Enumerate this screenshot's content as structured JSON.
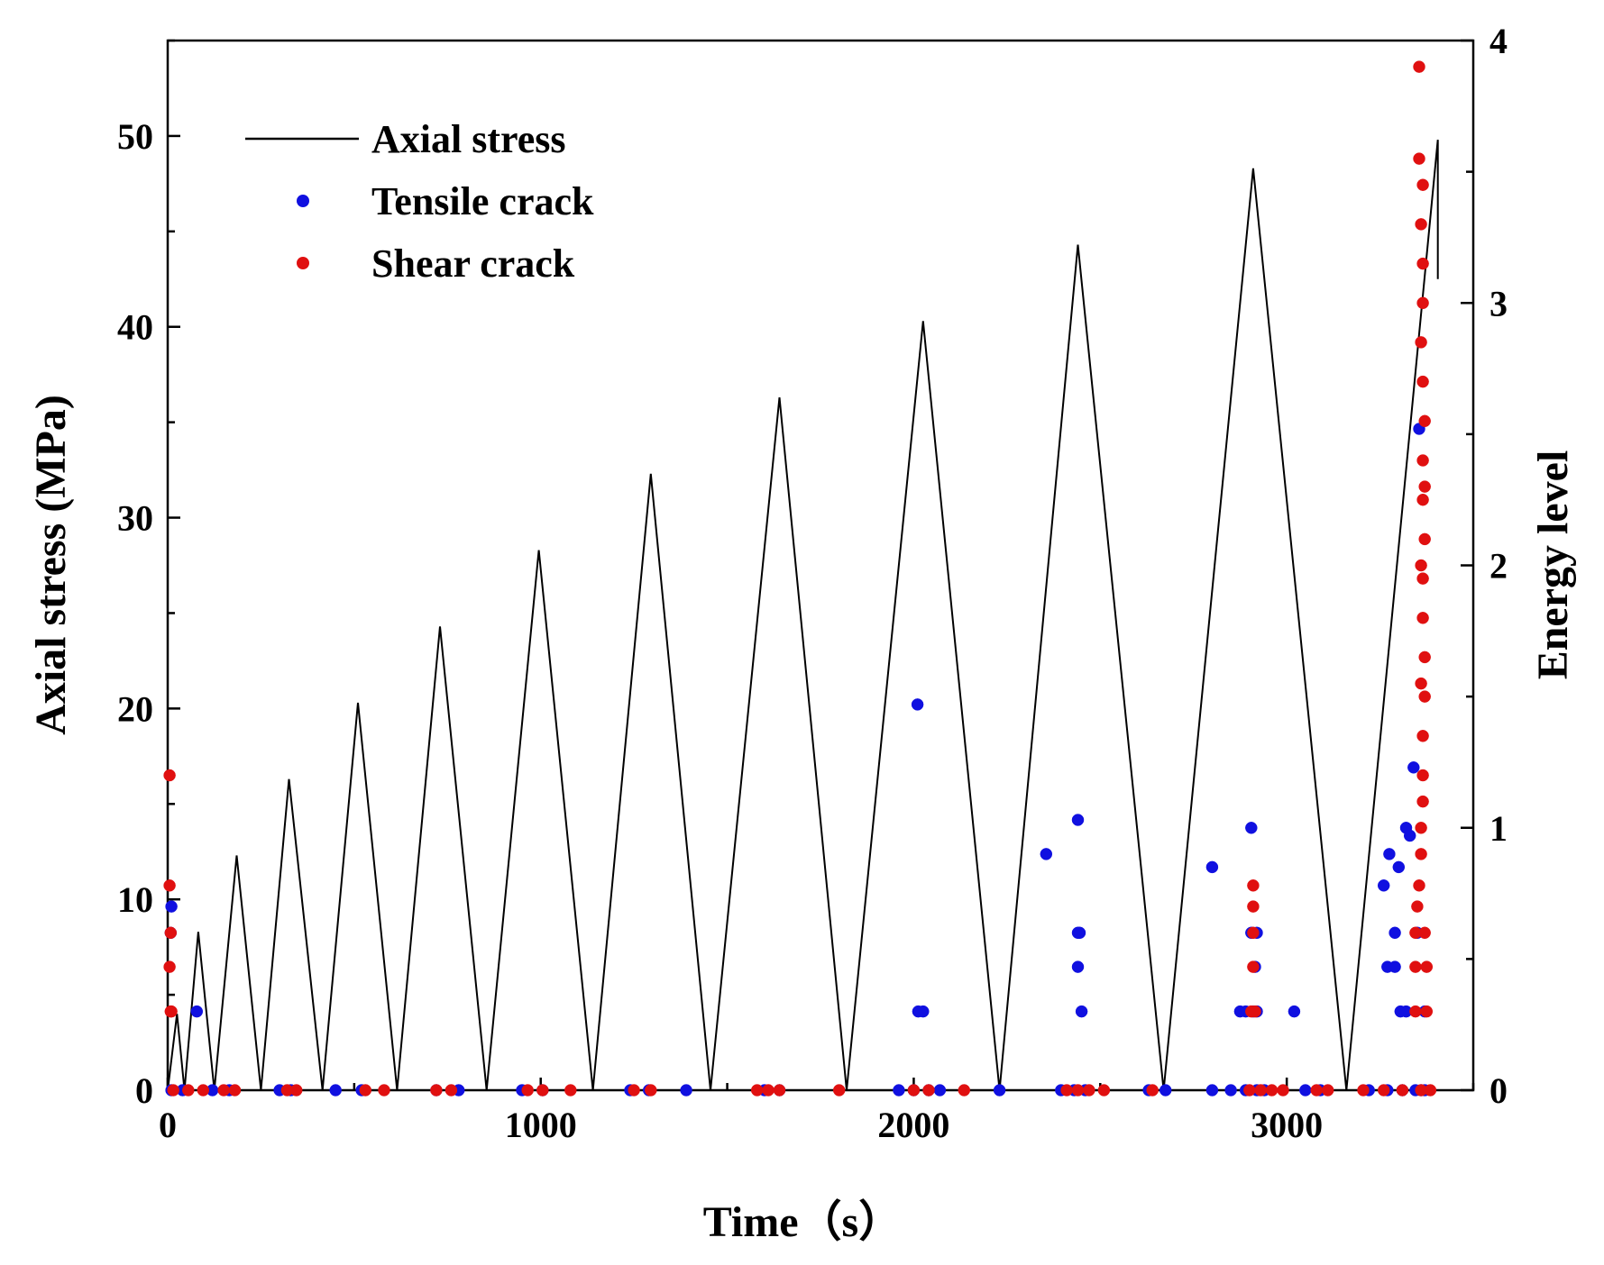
{
  "chart_data": {
    "type": "line+scatter",
    "xlabel": "Time（s）",
    "ylabel": "Axial stress (MPa)",
    "y2label": "Energy level",
    "xlim": [
      0,
      3500
    ],
    "ylim": [
      0,
      55
    ],
    "y2lim": [
      0,
      4
    ],
    "x_ticks": [
      "0",
      "1000",
      "2000",
      "3000"
    ],
    "x_tick_values": [
      0,
      1000,
      2000,
      3000
    ],
    "y_ticks": [
      "0",
      "10",
      "20",
      "30",
      "40",
      "50"
    ],
    "y_tick_values": [
      0,
      10,
      20,
      30,
      40,
      50
    ],
    "y2_ticks": [
      "0",
      "1",
      "2",
      "3",
      "4"
    ],
    "y2_tick_values": [
      0,
      1,
      2,
      3,
      4
    ],
    "legend": {
      "position": "top-left",
      "entries": [
        {
          "label": "Axial stress",
          "kind": "line",
          "color": "#000000"
        },
        {
          "label": "Tensile crack",
          "kind": "marker",
          "color": "#1010e0"
        },
        {
          "label": "Shear crack",
          "kind": "marker",
          "color": "#e01010"
        }
      ]
    },
    "colors": {
      "line": "#000000",
      "tensile": "#1010e0",
      "shear": "#e01010"
    },
    "series": [
      {
        "name": "Axial stress",
        "axis": "left",
        "points": [
          [
            0,
            0
          ],
          [
            25,
            4
          ],
          [
            45,
            0
          ],
          [
            82,
            8.3
          ],
          [
            125,
            0
          ],
          [
            185,
            12.3
          ],
          [
            250,
            0
          ],
          [
            325,
            16.3
          ],
          [
            415,
            0
          ],
          [
            510,
            20.3
          ],
          [
            615,
            0
          ],
          [
            730,
            24.3
          ],
          [
            855,
            0
          ],
          [
            995,
            28.3
          ],
          [
            1140,
            0
          ],
          [
            1295,
            32.3
          ],
          [
            1455,
            0
          ],
          [
            1640,
            36.3
          ],
          [
            1820,
            0
          ],
          [
            2025,
            40.3
          ],
          [
            2230,
            0
          ],
          [
            2440,
            44.3
          ],
          [
            2670,
            0
          ],
          [
            2910,
            48.3
          ],
          [
            3160,
            0
          ],
          [
            3405,
            49.8
          ],
          [
            3405,
            42.5
          ]
        ]
      },
      {
        "name": "Tensile crack",
        "axis": "right",
        "points": [
          [
            8,
            0.6
          ],
          [
            10,
            0.7
          ],
          [
            78,
            0.3
          ],
          [
            2010,
            1.47
          ],
          [
            2012,
            0.3
          ],
          [
            2025,
            0.3
          ],
          [
            2355,
            0.9
          ],
          [
            2440,
            1.03
          ],
          [
            2440,
            0.6
          ],
          [
            2445,
            0.6
          ],
          [
            2440,
            0.47
          ],
          [
            2450,
            0.3
          ],
          [
            2800,
            0.85
          ],
          [
            2875,
            0.3
          ],
          [
            2890,
            0.3
          ],
          [
            2905,
            1.0
          ],
          [
            2905,
            0.6
          ],
          [
            2920,
            0.6
          ],
          [
            2915,
            0.47
          ],
          [
            2910,
            0.3
          ],
          [
            2920,
            0.3
          ],
          [
            3020,
            0.3
          ],
          [
            3260,
            0.78
          ],
          [
            3275,
            0.9
          ],
          [
            3270,
            0.47
          ],
          [
            3290,
            0.47
          ],
          [
            3290,
            0.6
          ],
          [
            3300,
            0.85
          ],
          [
            3305,
            0.3
          ],
          [
            3320,
            1.0
          ],
          [
            3320,
            0.3
          ],
          [
            3330,
            0.97
          ],
          [
            3340,
            1.23
          ],
          [
            3355,
            2.52
          ],
          [
            3370,
            0.3
          ],
          [
            3350,
            0.6
          ]
        ],
        "zero_x": [
          10,
          40,
          120,
          165,
          300,
          330,
          450,
          520,
          720,
          780,
          950,
          1005,
          1240,
          1290,
          1390,
          1600,
          1640,
          1960,
          2000,
          2040,
          2070,
          2230,
          2395,
          2430,
          2460,
          2630,
          2675,
          2800,
          2850,
          2890,
          2920,
          2940,
          3050,
          3090,
          3220,
          3270,
          3310,
          3345,
          3360,
          3370
        ]
      },
      {
        "name": "Shear crack",
        "axis": "right",
        "points": [
          [
            5,
            1.2
          ],
          [
            5,
            0.78
          ],
          [
            8,
            0.6
          ],
          [
            5,
            0.47
          ],
          [
            8,
            0.3
          ],
          [
            10,
            0.3
          ],
          [
            2910,
            0.78
          ],
          [
            2910,
            0.7
          ],
          [
            2910,
            0.6
          ],
          [
            2910,
            0.47
          ],
          [
            2905,
            0.3
          ],
          [
            2915,
            0.3
          ],
          [
            3345,
            0.3
          ],
          [
            3345,
            0.47
          ],
          [
            3345,
            0.6
          ],
          [
            3350,
            0.7
          ],
          [
            3355,
            0.78
          ],
          [
            3360,
            0.9
          ],
          [
            3360,
            1.0
          ],
          [
            3365,
            1.1
          ],
          [
            3365,
            1.2
          ],
          [
            3365,
            1.35
          ],
          [
            3370,
            1.5
          ],
          [
            3370,
            1.65
          ],
          [
            3365,
            1.8
          ],
          [
            3365,
            1.95
          ],
          [
            3370,
            2.1
          ],
          [
            3365,
            2.25
          ],
          [
            3365,
            2.4
          ],
          [
            3370,
            2.55
          ],
          [
            3365,
            2.7
          ],
          [
            3360,
            2.85
          ],
          [
            3365,
            3.0
          ],
          [
            3365,
            3.15
          ],
          [
            3360,
            3.3
          ],
          [
            3365,
            3.45
          ],
          [
            3355,
            3.55
          ],
          [
            3355,
            3.9
          ],
          [
            3370,
            0.6
          ],
          [
            3375,
            0.47
          ],
          [
            3375,
            0.3
          ],
          [
            3360,
            1.55
          ],
          [
            3360,
            2.0
          ],
          [
            3370,
            2.3
          ]
        ],
        "zero_x": [
          15,
          55,
          95,
          150,
          180,
          320,
          345,
          530,
          580,
          720,
          760,
          965,
          1005,
          1080,
          1250,
          1295,
          1580,
          1610,
          1640,
          1800,
          2000,
          2040,
          2135,
          2410,
          2440,
          2470,
          2510,
          2640,
          2900,
          2930,
          2960,
          2990,
          3080,
          3110,
          3205,
          3260,
          3310,
          3360,
          3385
        ]
      }
    ]
  }
}
